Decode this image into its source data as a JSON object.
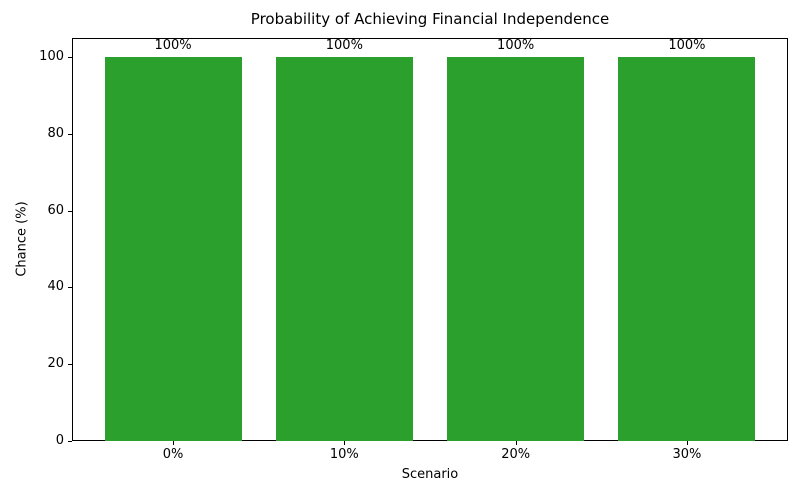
{
  "chart_data": {
    "type": "bar",
    "title": "Probability of Achieving Financial Independence",
    "xlabel": "Scenario",
    "ylabel": "Chance (%)",
    "categories": [
      "0%",
      "10%",
      "20%",
      "30%"
    ],
    "values": [
      100,
      100,
      100,
      100
    ],
    "bar_labels": [
      "100%",
      "100%",
      "100%",
      "100%"
    ],
    "yticks": [
      0,
      20,
      40,
      60,
      80,
      100
    ],
    "ylim": [
      0,
      105
    ],
    "bar_color": "#2ca02c",
    "grid": false,
    "legend_position": "none",
    "spine_color": "#000000",
    "background_color": "#ffffff"
  }
}
